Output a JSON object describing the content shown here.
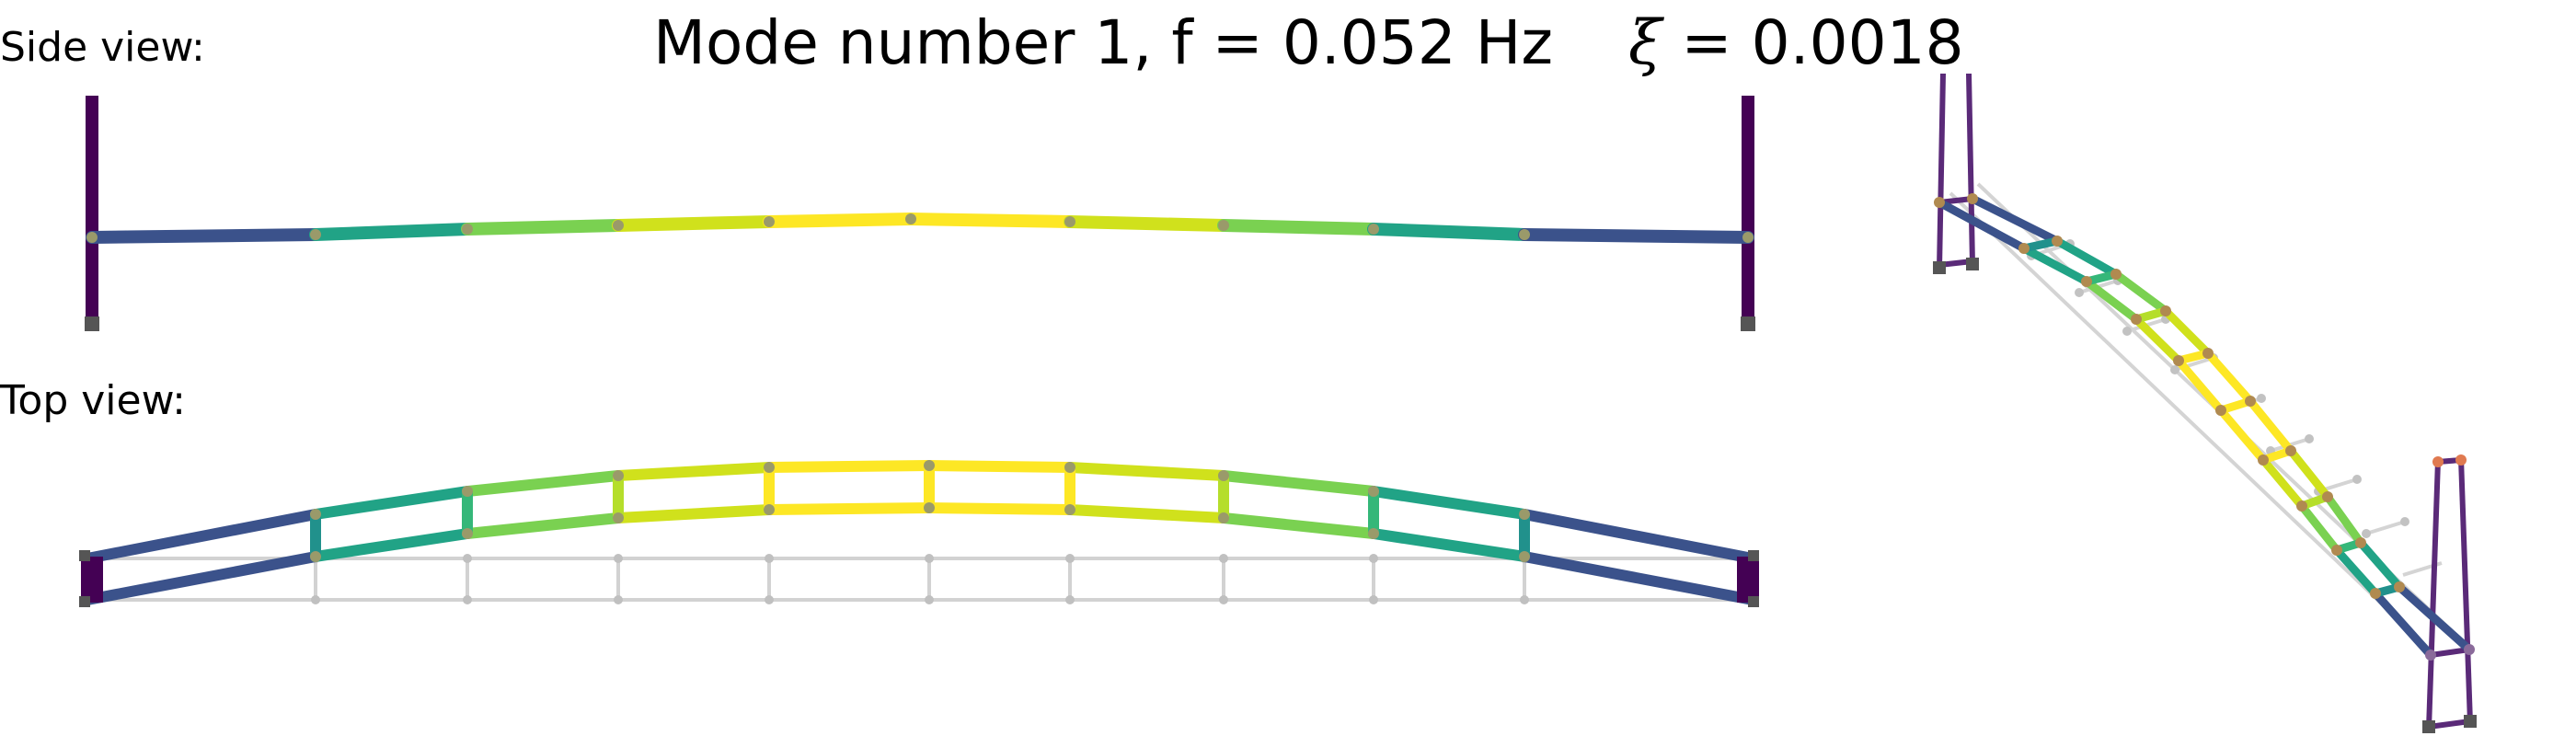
{
  "title": {
    "text": "Mode number 1, f = 0.052 Hz",
    "damping_symbol": "ξ",
    "damping_text": " = 0.0018"
  },
  "labels": {
    "side_view": "Side view:",
    "top_view": "Top view:"
  },
  "colors": {
    "viridis_dark": "#440154",
    "viridis_blue": "#3b528b",
    "viridis_teal": "#21918c",
    "viridis_green": "#5ec962",
    "viridis_yellow": "#fde725",
    "undeformed": "#cccccc",
    "node": "#a0a0a0",
    "support": "#555555"
  }
}
